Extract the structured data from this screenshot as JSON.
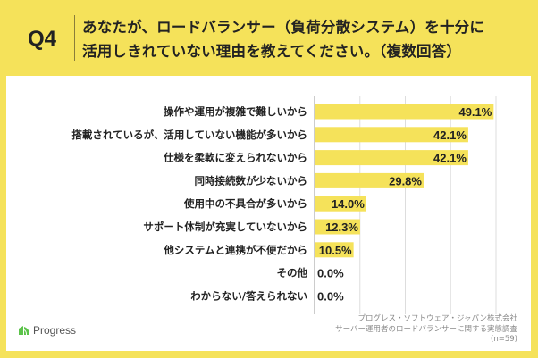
{
  "header": {
    "question_label": "Q4",
    "question_text": "あなたが、ロードバランサー（負荷分散システム）を十分に\n活用しきれていない理由を教えてください。（複数回答）"
  },
  "colors": {
    "background": "#f5e25a",
    "bar": "#f5e25a",
    "panel": "#ffffff"
  },
  "chart_data": {
    "type": "bar",
    "orientation": "horizontal",
    "title": "あなたが、ロードバランサー（負荷分散システム）を十分に活用しきれていない理由を教えてください。（複数回答）",
    "xlabel": "",
    "ylabel": "",
    "xlim": [
      0,
      50
    ],
    "grid": true,
    "grid_ticks": [
      0,
      12.5,
      25,
      37.5,
      50
    ],
    "categories": [
      "操作や運用が複雑で難しいから",
      "搭載されているが、活用していない機能が多いから",
      "仕様を柔軟に変えられないから",
      "同時接続数が少ないから",
      "使用中の不具合が多いから",
      "サポート体制が充実していないから",
      "他システムと連携が不便だから",
      "その他",
      "わからない/答えられない"
    ],
    "values": [
      49.1,
      42.1,
      42.1,
      29.8,
      14.0,
      12.3,
      10.5,
      0.0,
      0.0
    ],
    "value_labels": [
      "49.1%",
      "42.1%",
      "42.1%",
      "29.8%",
      "14.0%",
      "12.3%",
      "10.5%",
      "0.0%",
      "0.0%"
    ],
    "unit": "%"
  },
  "footer": {
    "source_lines": [
      "プログレス・ソフトウェア・ジャパン株式会社",
      "サーバー運用者のロードバランサーに関する実態調査",
      "(n=59)"
    ],
    "logo_text": "Progress"
  }
}
